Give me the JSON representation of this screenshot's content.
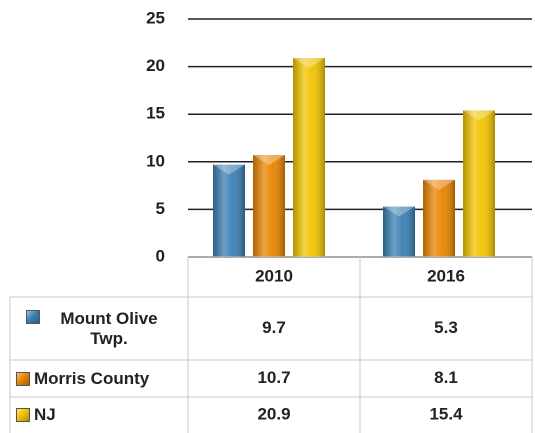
{
  "chart_data": {
    "type": "bar",
    "categories": [
      "2010",
      "2016"
    ],
    "series": [
      {
        "name": "Mount Olive Twp.",
        "color": "#3a7fb3",
        "values": [
          9.7,
          5.3
        ]
      },
      {
        "name": "Morris County",
        "color": "#e88400",
        "values": [
          10.7,
          8.1
        ]
      },
      {
        "name": "NJ",
        "color": "#f2c300",
        "values": [
          20.9,
          15.4
        ]
      }
    ],
    "ylim": [
      0,
      25
    ],
    "yticks": [
      0,
      5,
      10,
      15,
      20,
      25
    ],
    "grid": true,
    "data_table": true
  }
}
